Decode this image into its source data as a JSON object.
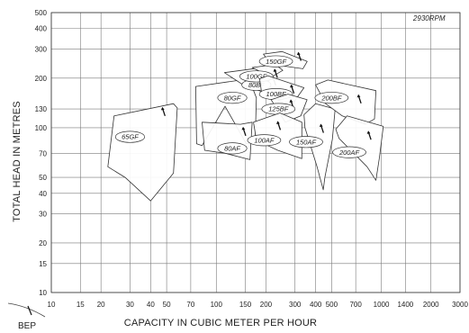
{
  "chart_data": {
    "type": "scatter",
    "title": "",
    "speed_label": "2930RPM",
    "xlabel": "CAPACITY  IN CUBIC METER PER HOUR",
    "ylabel": "TOTAL  HEAD IN METRES",
    "x_scale": "log",
    "y_scale": "log",
    "xlim": [
      10,
      3000
    ],
    "ylim": [
      10,
      500
    ],
    "grid": true,
    "x_ticks": [
      {
        "value": 10,
        "label": "10"
      },
      {
        "value": 15,
        "label": "15"
      },
      {
        "value": 20,
        "label": "20"
      },
      {
        "value": 30,
        "label": "30"
      },
      {
        "value": 40,
        "label": "40"
      },
      {
        "value": 50,
        "label": "50"
      },
      {
        "value": 70,
        "label": "70"
      },
      {
        "value": 100,
        "label": "100"
      },
      {
        "value": 150,
        "label": "150"
      },
      {
        "value": 200,
        "label": "200"
      },
      {
        "value": 300,
        "label": "300"
      },
      {
        "value": 400,
        "label": "400"
      },
      {
        "value": 500,
        "label": "500"
      },
      {
        "value": 700,
        "label": "700"
      },
      {
        "value": 1000,
        "label": "1000"
      },
      {
        "value": 1400,
        "label": "1400"
      },
      {
        "value": 2000,
        "label": "2000"
      },
      {
        "value": 3000,
        "label": "3000"
      }
    ],
    "y_ticks": [
      {
        "value": 10,
        "label": "10"
      },
      {
        "value": 15,
        "label": "15"
      },
      {
        "value": 20,
        "label": "20"
      },
      {
        "value": 30,
        "label": "30"
      },
      {
        "value": 40,
        "label": "40"
      },
      {
        "value": 50,
        "label": "50"
      },
      {
        "value": 70,
        "label": "70"
      },
      {
        "value": 100,
        "label": "100"
      },
      {
        "value": 130,
        "label": "130"
      },
      {
        "value": 200,
        "label": "200"
      },
      {
        "value": 300,
        "label": "300"
      },
      {
        "value": 400,
        "label": "400"
      },
      {
        "value": 500,
        "label": "500"
      }
    ],
    "bep_label": "BEP",
    "pump_ranges": [
      {
        "model": "65GF",
        "label_at": [
          30,
          88
        ],
        "bep": [
          48,
          124
        ],
        "outline": [
          [
            24,
            118
          ],
          [
            55,
            140
          ],
          [
            58,
            132
          ],
          [
            55,
            53
          ],
          [
            40,
            36
          ],
          [
            28,
            50
          ],
          [
            22,
            58
          ]
        ]
      },
      {
        "model": "80GF",
        "label_at": [
          125,
          152
        ],
        "bep": [
          158,
          180
        ],
        "outline": [
          [
            75,
            178
          ],
          [
            158,
            198
          ],
          [
            175,
            152
          ],
          [
            172,
            82
          ],
          [
            152,
            80
          ],
          [
            113,
            135
          ],
          [
            82,
            78
          ],
          [
            76,
            80
          ]
        ]
      },
      {
        "model": "80AF",
        "label_at": [
          125,
          75
        ],
        "bep": [
          148,
          94
        ],
        "outline": [
          [
            82,
            108
          ],
          [
            140,
            105
          ],
          [
            165,
            108
          ],
          [
            160,
            64
          ],
          [
            113,
            70
          ],
          [
            85,
            73
          ]
        ]
      },
      {
        "model": "80BF",
        "label_at": [
          175,
          182
        ],
        "bep": [
          225,
          190
        ],
        "outline": [
          [
            112,
            216
          ],
          [
            180,
            230
          ],
          [
            215,
            207
          ],
          [
            195,
            164
          ],
          [
            148,
            180
          ]
        ]
      },
      {
        "model": "100GF",
        "label_at": [
          175,
          205
        ],
        "bep": [
          230,
          212
        ],
        "outline": [
          [
            165,
            232
          ],
          [
            228,
            242
          ],
          [
            253,
            223
          ],
          [
            215,
            203
          ]
        ]
      },
      {
        "model": "150GF",
        "label_at": [
          230,
          253
        ],
        "bep": [
          320,
          268
        ],
        "outline": [
          [
            193,
            280
          ],
          [
            250,
            290
          ],
          [
            356,
            253
          ],
          [
            335,
            228
          ],
          [
            215,
            243
          ]
        ]
      },
      {
        "model": "100BF",
        "label_at": [
          230,
          160
        ],
        "bep": [
          290,
          170
        ],
        "outline": [
          [
            183,
            198
          ],
          [
            205,
            207
          ],
          [
            340,
            175
          ],
          [
            283,
            135
          ],
          [
            188,
            165
          ]
        ]
      },
      {
        "model": "125BF",
        "label_at": [
          238,
          130
        ],
        "bep": [
          288,
          138
        ],
        "outline": [
          [
            215,
            148
          ],
          [
            272,
            160
          ],
          [
            355,
            148
          ],
          [
            325,
            118
          ],
          [
            262,
            108
          ]
        ]
      },
      {
        "model": "100AF",
        "label_at": [
          195,
          84
        ],
        "bep": [
          240,
          102
        ],
        "outline": [
          [
            168,
            108
          ],
          [
            243,
            123
          ],
          [
            330,
            108
          ],
          [
            330,
            65
          ],
          [
            236,
            73
          ],
          [
            175,
            84
          ]
        ]
      },
      {
        "model": "150AF",
        "label_at": [
          350,
          82
        ],
        "bep": [
          438,
          98
        ],
        "outline": [
          [
            340,
            120
          ],
          [
            400,
            140
          ],
          [
            525,
            130
          ],
          [
            505,
            85
          ],
          [
            455,
            50
          ],
          [
            445,
            42
          ],
          [
            408,
            58
          ],
          [
            345,
            100
          ]
        ]
      },
      {
        "model": "200BF",
        "label_at": [
          500,
          152
        ],
        "bep": [
          740,
          148
        ],
        "outline": [
          [
            400,
            182
          ],
          [
            475,
            195
          ],
          [
            928,
            168
          ],
          [
            910,
            113
          ],
          [
            800,
            105
          ],
          [
            580,
            118
          ],
          [
            460,
            140
          ]
        ]
      },
      {
        "model": "200AF",
        "label_at": [
          640,
          71
        ],
        "bep": [
          850,
          89
        ],
        "outline": [
          [
            530,
            98
          ],
          [
            620,
            118
          ],
          [
            1028,
            102
          ],
          [
            975,
            66
          ],
          [
            928,
            48
          ],
          [
            820,
            58
          ],
          [
            555,
            86
          ]
        ]
      }
    ],
    "bep_legend_marker": true
  }
}
